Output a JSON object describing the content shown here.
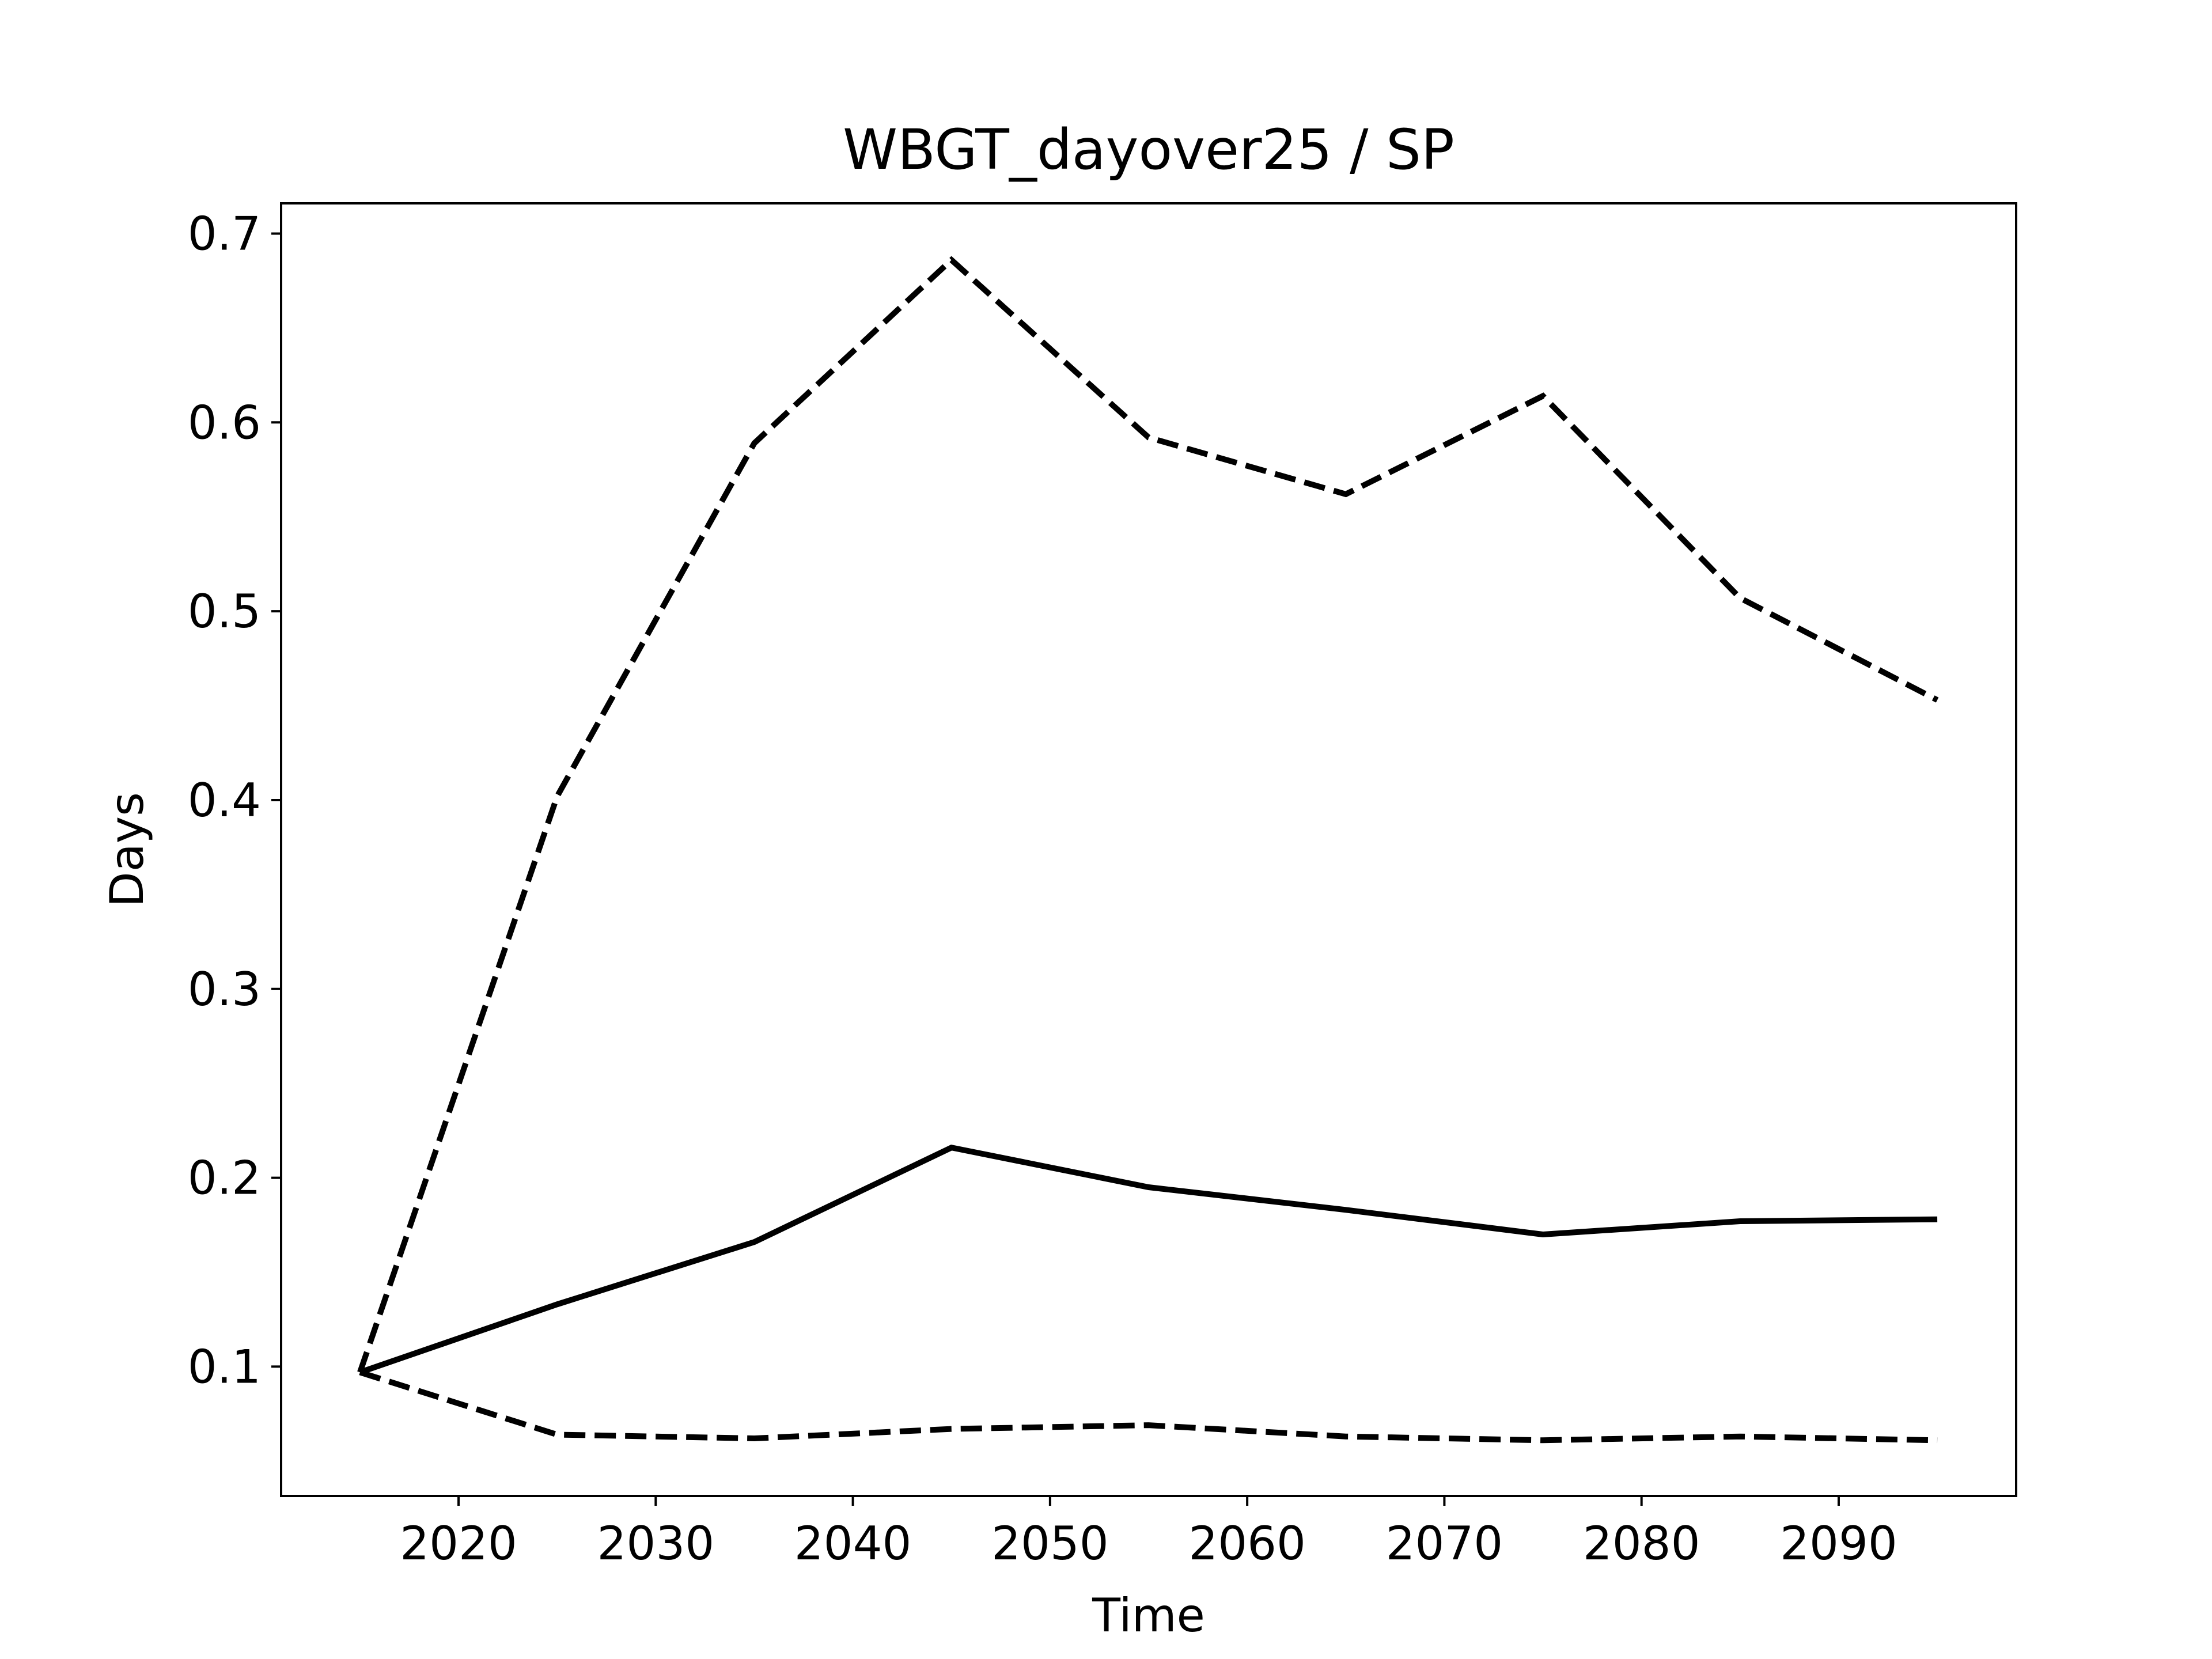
{
  "chart_data": {
    "type": "line",
    "title": "WBGT_dayover25 / SP",
    "xlabel": "Time",
    "ylabel": "Days",
    "xlim": [
      2011,
      2099
    ],
    "ylim": [
      0.0315,
      0.716
    ],
    "xticks": [
      2020,
      2030,
      2040,
      2050,
      2060,
      2070,
      2080,
      2090
    ],
    "yticks": [
      0.1,
      0.2,
      0.3,
      0.4,
      0.5,
      0.6,
      0.7
    ],
    "ytick_labels": [
      "0.1",
      "0.2",
      "0.3",
      "0.4",
      "0.5",
      "0.6",
      "0.7"
    ],
    "grid": false,
    "legend": "none",
    "x": [
      2015,
      2025,
      2035,
      2045,
      2055,
      2065,
      2075,
      2085,
      2095
    ],
    "series": [
      {
        "style": "solid",
        "color": "#000000",
        "values": [
          0.097,
          0.133,
          0.166,
          0.216,
          0.195,
          0.183,
          0.17,
          0.177,
          0.178
        ]
      },
      {
        "style": "dashed",
        "color": "#000000",
        "values": [
          0.097,
          0.402,
          0.589,
          0.686,
          0.592,
          0.562,
          0.614,
          0.507,
          0.453
        ]
      },
      {
        "style": "dashed",
        "color": "#000000",
        "values": [
          0.097,
          0.064,
          0.062,
          0.067,
          0.069,
          0.063,
          0.061,
          0.063,
          0.061
        ]
      }
    ]
  }
}
